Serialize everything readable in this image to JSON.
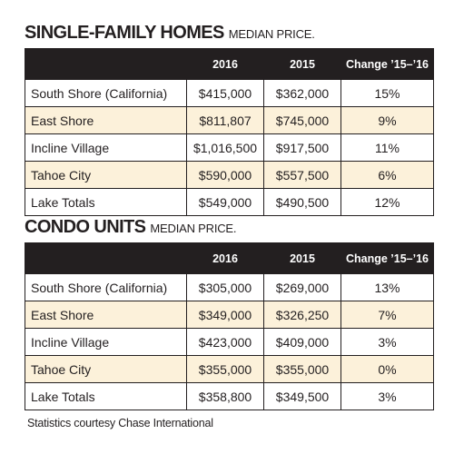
{
  "sections": [
    {
      "title": "SINGLE-FAMILY HOMES",
      "subtitle": "MEDIAN PRICE.",
      "columns": [
        "2016",
        "2015",
        "Change ’15–’16"
      ],
      "rows": [
        [
          "South Shore (California)",
          "$415,000",
          "$362,000",
          "15%"
        ],
        [
          "East Shore",
          "$811,807",
          "$745,000",
          "9%"
        ],
        [
          "Incline Village",
          "$1,016,500",
          "$917,500",
          "11%"
        ],
        [
          "Tahoe City",
          "$590,000",
          "$557,500",
          "6%"
        ],
        [
          "Lake Totals",
          "$549,000",
          "$490,500",
          "12%"
        ]
      ]
    },
    {
      "title": "CONDO UNITS",
      "subtitle": "MEDIAN PRICE.",
      "columns": [
        "2016",
        "2015",
        "Change ’15–’16"
      ],
      "rows": [
        [
          "South Shore (California)",
          "$305,000",
          "$269,000",
          "13%"
        ],
        [
          "East Shore",
          "$349,000",
          "$326,250",
          "7%"
        ],
        [
          "Incline Village",
          "$423,000",
          "$409,000",
          "3%"
        ],
        [
          "Tahoe City",
          "$355,000",
          "$355,000",
          "0%"
        ],
        [
          "Lake Totals",
          "$358,800",
          "$349,500",
          "3%"
        ]
      ]
    }
  ],
  "footer": "Statistics courtesy Chase International"
}
